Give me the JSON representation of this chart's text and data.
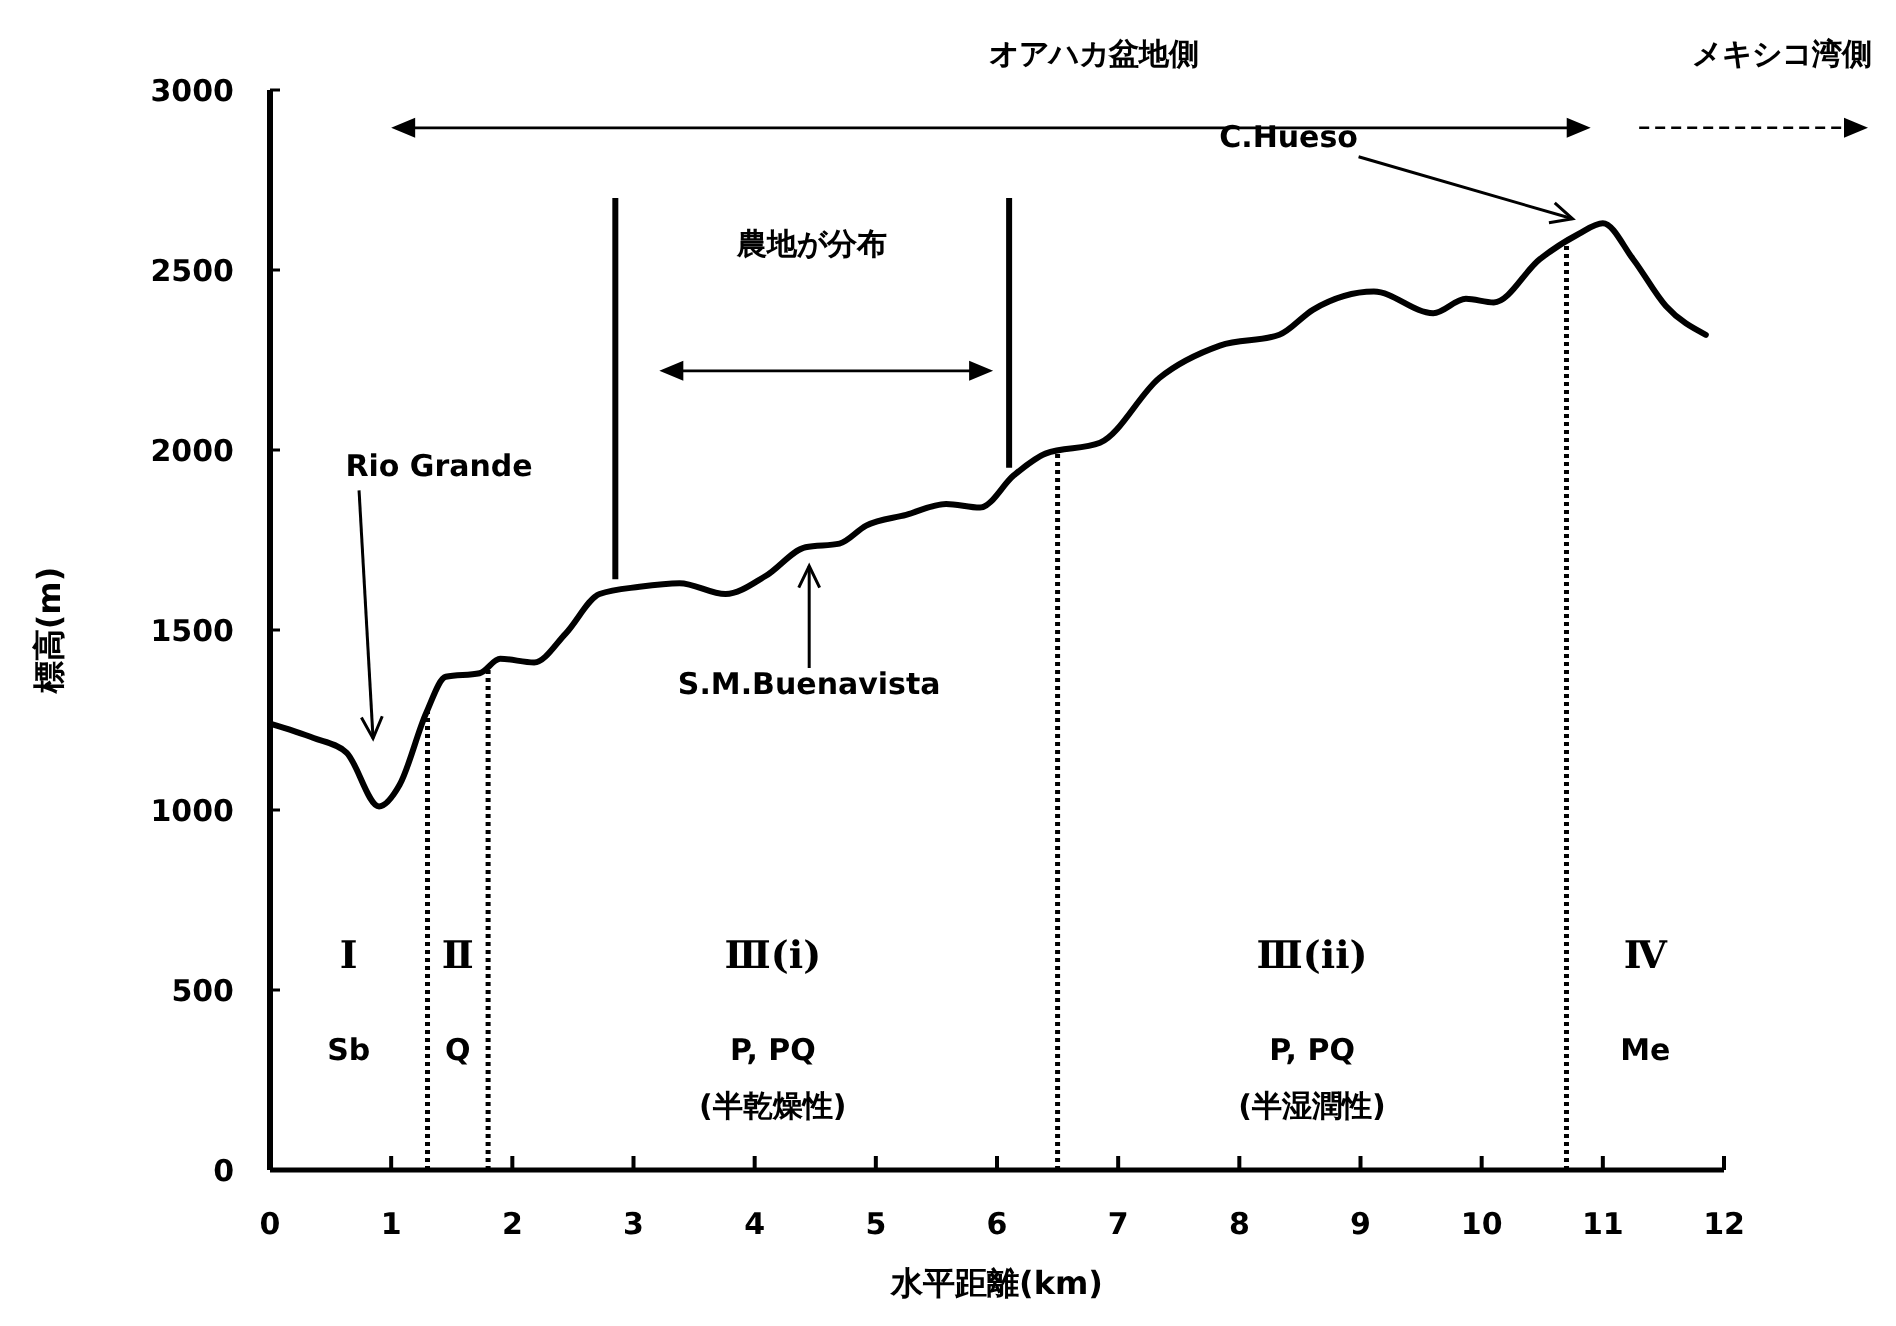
{
  "chart_data": {
    "type": "line",
    "xlabel": "水平距離(km)",
    "ylabel": "標高(m)",
    "x": [
      0,
      0.36,
      0.63,
      0.9,
      1.07,
      1.29,
      1.45,
      1.73,
      1.9,
      2.18,
      2.44,
      2.72,
      3.05,
      3.38,
      3.76,
      4.09,
      4.42,
      4.7,
      4.92,
      5.25,
      5.58,
      5.86,
      6.14,
      6.4,
      6.85,
      7.34,
      7.84,
      8.33,
      8.61,
      9.11,
      9.6,
      9.87,
      10.1,
      10.48,
      10.8,
      11,
      11.25,
      11.52,
      11.85
    ],
    "values": [
      1240,
      1200,
      1160,
      1010,
      1070,
      1270,
      1370,
      1380,
      1420,
      1410,
      1490,
      1600,
      1620,
      1630,
      1600,
      1650,
      1730,
      1740,
      1790,
      1820,
      1850,
      1840,
      1930,
      1990,
      2020,
      2200,
      2290,
      2320,
      2390,
      2440,
      2380,
      2420,
      2410,
      2530,
      2600,
      2630,
      2530,
      2400,
      2320
    ],
    "color": "#000000",
    "xlim": [
      0,
      12
    ],
    "xticks": [
      0,
      1,
      2,
      3,
      4,
      5,
      6,
      7,
      8,
      9,
      10,
      11,
      12
    ],
    "ylim": [
      0,
      3000
    ],
    "yticks": [
      0,
      500,
      1000,
      1500,
      2000,
      2500,
      3000
    ],
    "grid": false,
    "ref_lines": [
      {
        "axis": "x",
        "value": 1.3,
        "line_style": "dotted",
        "color": "#000000"
      },
      {
        "axis": "x",
        "value": 1.8,
        "line_style": "dotted",
        "color": "#000000"
      },
      {
        "axis": "x",
        "value": 6.5,
        "line_style": "dotted",
        "color": "#000000"
      },
      {
        "axis": "x",
        "value": 10.7,
        "line_style": "dotted",
        "color": "#000000"
      },
      {
        "axis": "x",
        "value": 2.85,
        "line_style": "solid",
        "color": "#000000"
      },
      {
        "axis": "x",
        "value": 6.1,
        "line_style": "solid",
        "color": "#000000"
      }
    ],
    "annotations": [
      "オアハカ盆地側",
      "メキシコ湾側",
      "農地が分布",
      "Ⅰ\nSb",
      "Ⅱ\nQ",
      "Ⅲ(ⅰ)\nP, PQ\n(半乾燥性)",
      "Ⅲ(ⅱ)\nP, PQ\n(半湿潤性)",
      "Ⅳ\nMe",
      "Rio Grande",
      {
        "text": "S.M.Buenavista",
        "x": 4.45,
        "y": 1700
      },
      {
        "text": "C.Hueso",
        "x": 10.8,
        "y": 2620
      }
    ]
  }
}
